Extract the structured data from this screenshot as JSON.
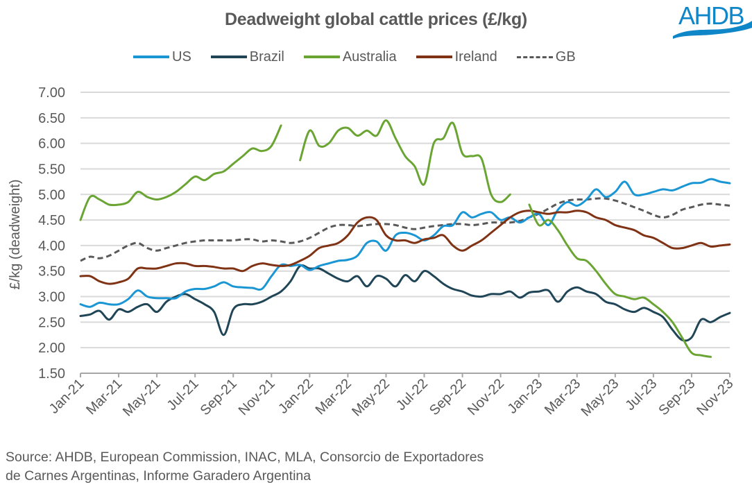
{
  "header": {
    "title": "Deadweight global cattle prices (£/kg)",
    "logo_text": "AHDB"
  },
  "footer": {
    "source_line1": "Source: AHDB, European Commission, INAC, MLA, Consorcio de Exportadores",
    "source_line2": "de Carnes Argentinas, Informe Garadero Argentina"
  },
  "colors": {
    "US": "#1a96d4",
    "Brazil": "#1f4556",
    "Australia": "#6aa533",
    "Ireland": "#7f3214",
    "GB": "#595959",
    "grid": "#d9d9d9",
    "axis": "#a6a6a6",
    "brand": "#0f86c8"
  },
  "chart_data": {
    "type": "line",
    "title": "Deadweight global cattle prices (£/kg)",
    "xlabel": "",
    "ylabel": "£/kg (deadweight)",
    "ylim": [
      1.5,
      7.0
    ],
    "yticks": [
      "7.00",
      "6.50",
      "6.00",
      "5.50",
      "5.00",
      "4.50",
      "4.00",
      "3.50",
      "3.00",
      "2.50",
      "2.00",
      "1.50"
    ],
    "ytick_values": [
      7.0,
      6.5,
      6.0,
      5.5,
      5.0,
      4.5,
      4.0,
      3.5,
      3.0,
      2.5,
      2.0,
      1.5
    ],
    "xticks": [
      "Jan-21",
      "Mar-21",
      "May-21",
      "Jul-21",
      "Sep-21",
      "Nov-21",
      "Jan-22",
      "Mar-22",
      "May-22",
      "Jul-22",
      "Sep-22",
      "Nov-22",
      "Jan-23",
      "Mar-23",
      "May-23",
      "Jul-23",
      "Sep-23",
      "Nov-23"
    ],
    "x_unit": "half-month index from Jan-21 (0 = Jan-21, 68 = Nov-23)",
    "x_range": [
      0,
      68
    ],
    "grid": true,
    "legend_position": "top",
    "series": [
      {
        "name": "US",
        "style": "solid",
        "values": [
          2.85,
          2.8,
          2.88,
          2.85,
          2.85,
          2.95,
          3.12,
          3.0,
          2.97,
          2.97,
          2.97,
          3.1,
          3.15,
          3.15,
          3.2,
          3.28,
          3.2,
          3.18,
          3.17,
          3.15,
          3.4,
          3.62,
          3.6,
          3.62,
          3.52,
          3.6,
          3.65,
          3.7,
          3.72,
          3.8,
          4.05,
          4.08,
          3.9,
          4.2,
          4.25,
          4.2,
          4.1,
          4.2,
          4.38,
          4.4,
          4.65,
          4.55,
          4.62,
          4.65,
          4.5,
          4.55,
          4.45,
          4.55,
          4.62,
          4.4,
          4.7,
          4.85,
          4.78,
          4.9,
          5.1,
          4.95,
          5.05,
          5.25,
          5.0,
          5.0,
          5.05,
          5.1,
          5.08,
          5.15,
          5.22,
          5.23,
          5.3,
          5.25,
          5.22
        ]
      },
      {
        "name": "Brazil",
        "style": "solid",
        "values": [
          2.62,
          2.65,
          2.72,
          2.55,
          2.75,
          2.7,
          2.8,
          2.85,
          2.7,
          2.9,
          3.0,
          3.05,
          2.95,
          2.85,
          2.7,
          2.25,
          2.75,
          2.85,
          2.85,
          2.9,
          3.0,
          3.1,
          3.3,
          3.6,
          3.55,
          3.55,
          3.45,
          3.35,
          3.3,
          3.4,
          3.2,
          3.4,
          3.35,
          3.2,
          3.42,
          3.3,
          3.5,
          3.4,
          3.25,
          3.15,
          3.1,
          3.02,
          3.0,
          3.05,
          3.05,
          3.1,
          2.98,
          3.08,
          3.1,
          3.12,
          2.9,
          3.1,
          3.18,
          3.1,
          3.05,
          2.9,
          2.85,
          2.75,
          2.7,
          2.78,
          2.7,
          2.6,
          2.35,
          2.15,
          2.2,
          2.55,
          2.5,
          2.6,
          2.68
        ]
      },
      {
        "name": "Australia",
        "style": "solid",
        "values": [
          4.5,
          4.95,
          4.9,
          4.8,
          4.8,
          4.85,
          5.05,
          4.95,
          4.9,
          4.95,
          5.05,
          5.2,
          5.35,
          5.28,
          5.4,
          5.45,
          5.6,
          5.75,
          5.9,
          5.85,
          5.95,
          6.35,
          null,
          5.67,
          6.25,
          5.95,
          6.0,
          6.25,
          6.3,
          6.15,
          6.25,
          6.15,
          6.45,
          6.1,
          5.75,
          5.55,
          5.2,
          6.0,
          6.1,
          6.4,
          5.8,
          5.75,
          5.7,
          5.0,
          4.85,
          5.0,
          null,
          4.8,
          4.4,
          4.5,
          4.3,
          4.0,
          3.75,
          3.7,
          3.5,
          3.25,
          3.05,
          3.0,
          2.95,
          2.98,
          2.85,
          2.7,
          2.5,
          2.2,
          1.9,
          1.85,
          1.82,
          null,
          null
        ]
      },
      {
        "name": "Ireland",
        "style": "solid",
        "values": [
          3.4,
          3.4,
          3.3,
          3.25,
          3.28,
          3.35,
          3.55,
          3.55,
          3.55,
          3.6,
          3.65,
          3.65,
          3.6,
          3.6,
          3.58,
          3.55,
          3.55,
          3.5,
          3.6,
          3.65,
          3.62,
          3.6,
          3.62,
          3.7,
          3.8,
          3.95,
          4.0,
          4.05,
          4.2,
          4.45,
          4.55,
          4.5,
          4.2,
          4.1,
          4.1,
          4.05,
          4.12,
          4.15,
          4.2,
          4.0,
          3.9,
          4.0,
          4.1,
          4.25,
          4.4,
          4.55,
          4.65,
          4.68,
          4.65,
          4.62,
          4.65,
          4.65,
          4.68,
          4.65,
          4.55,
          4.5,
          4.4,
          4.35,
          4.3,
          4.2,
          4.15,
          4.05,
          3.95,
          3.95,
          4.0,
          4.05,
          3.98,
          4.0,
          4.02
        ]
      },
      {
        "name": "GB",
        "style": "dashed",
        "values": [
          3.7,
          3.78,
          3.75,
          3.8,
          3.9,
          4.0,
          4.05,
          3.95,
          3.9,
          3.95,
          4.0,
          4.05,
          4.08,
          4.1,
          4.1,
          4.1,
          4.1,
          4.12,
          4.12,
          4.08,
          4.1,
          4.08,
          4.05,
          4.08,
          4.15,
          4.25,
          4.35,
          4.4,
          4.4,
          4.38,
          4.4,
          4.42,
          4.42,
          4.4,
          4.35,
          4.32,
          4.35,
          4.38,
          4.4,
          4.42,
          4.42,
          4.4,
          4.42,
          4.45,
          4.45,
          4.45,
          4.48,
          4.55,
          4.62,
          4.72,
          4.82,
          4.88,
          4.9,
          4.9,
          4.92,
          4.92,
          4.88,
          4.82,
          4.75,
          4.68,
          4.6,
          4.55,
          4.6,
          4.7,
          4.75,
          4.8,
          4.82,
          4.8,
          4.78
        ]
      }
    ]
  }
}
